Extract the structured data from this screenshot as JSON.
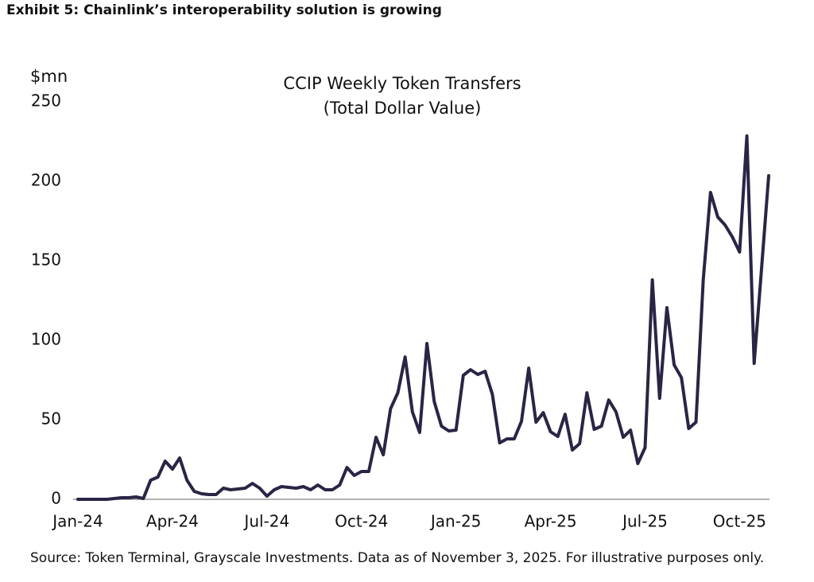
{
  "header": "Exhibit 5: Chainlink’s interoperability solution is growing",
  "footer": "Source: Token Terminal, Grayscale Investments. Data as of November 3, 2025. For illustrative purposes only.",
  "chart_data": {
    "type": "line",
    "title": "CCIP Weekly Token Transfers",
    "subtitle": "(Total Dollar Value)",
    "y_label": "$mn",
    "color": "#2a2545",
    "categories": [
      "Jan-24",
      null,
      null,
      null,
      null,
      null,
      null,
      null,
      null,
      null,
      null,
      null,
      null,
      "Apr-24",
      null,
      null,
      null,
      null,
      null,
      null,
      null,
      null,
      null,
      null,
      null,
      null,
      "Jul-24",
      null,
      null,
      null,
      null,
      null,
      null,
      null,
      null,
      null,
      null,
      null,
      null,
      "Oct-24",
      null,
      null,
      null,
      null,
      null,
      null,
      null,
      null,
      null,
      null,
      null,
      null,
      "Jan-25",
      null,
      null,
      null,
      null,
      null,
      null,
      null,
      null,
      null,
      null,
      null,
      null,
      "Apr-25",
      null,
      null,
      null,
      null,
      null,
      null,
      null,
      null,
      null,
      null,
      null,
      null,
      "Jul-25",
      null,
      null,
      null,
      null,
      null,
      null,
      null,
      null,
      null,
      null,
      null,
      null,
      "Oct-25",
      null,
      null,
      null,
      null
    ],
    "values": [
      0,
      0,
      0,
      0,
      0,
      0.5,
      1,
      1,
      1.5,
      0.5,
      12,
      14,
      24,
      19,
      26,
      12,
      5,
      3.5,
      3,
      3,
      7,
      6,
      6.5,
      7,
      10,
      7,
      2,
      6,
      8,
      7.5,
      7,
      8,
      6,
      9,
      6,
      6,
      9,
      20,
      15,
      17.5,
      17.5,
      39,
      28,
      57,
      67,
      89.5,
      55,
      42,
      98,
      61.5,
      46,
      43,
      43.5,
      78,
      81.5,
      78.5,
      80.5,
      66,
      35.5,
      38,
      38,
      49,
      82.5,
      48.5,
      54.5,
      42.5,
      39.5,
      53.5,
      31,
      35,
      67,
      44,
      46,
      62.5,
      55,
      39,
      43.5,
      22.5,
      32.5,
      138,
      63.5,
      120.5,
      84.5,
      76.5,
      44.5,
      48.5,
      138,
      193,
      177.5,
      172.5,
      165,
      155.5,
      228.5,
      85.5,
      144,
      203.5
    ],
    "ylim": [
      0,
      250
    ],
    "yticks": [
      0,
      50,
      100,
      150,
      200,
      250
    ],
    "grid": false
  }
}
